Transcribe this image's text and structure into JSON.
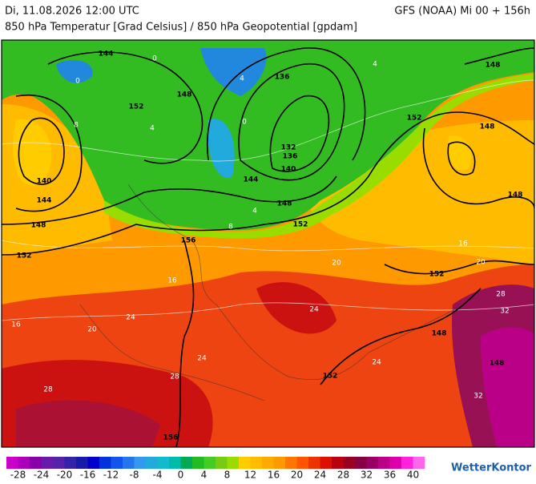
{
  "header": {
    "date_time": "Di, 11.08.2026 12:00 UTC",
    "model_run": "GFS (NOAA) Mi 00 + 156h",
    "subtitle": "850 hPa Temperatur [Grad Celsius] / 850 hPa Geopotential [gpdam]"
  },
  "map_labels": {
    "geopotential": [
      144,
      148,
      152,
      136,
      140,
      144,
      148,
      152,
      132,
      136,
      140,
      144,
      148,
      152,
      156,
      152,
      148,
      148,
      148,
      152,
      148,
      148,
      152,
      156
    ],
    "temperature": [
      0,
      0,
      4,
      4,
      4,
      0,
      4,
      8,
      16,
      16,
      20,
      20,
      24,
      24,
      24,
      28,
      28,
      24,
      32,
      32,
      20,
      28,
      8,
      16
    ]
  },
  "colorbar": {
    "labels": [
      -28,
      -24,
      -20,
      -16,
      -12,
      -8,
      -4,
      0,
      4,
      8,
      12,
      16,
      20,
      24,
      28,
      32,
      36,
      40
    ],
    "colors": [
      "#cc00cc",
      "#aa00bb",
      "#8800aa",
      "#6a1aa8",
      "#5522aa",
      "#3322aa",
      "#1a1aaa",
      "#0000cc",
      "#0033dd",
      "#1155ee",
      "#2277ee",
      "#3399ee",
      "#22aadd",
      "#11bbcc",
      "#00bbaa",
      "#00aa55",
      "#22bb22",
      "#44cc22",
      "#77cc11",
      "#99dd00",
      "#ffcc00",
      "#ffbb00",
      "#ffaa00",
      "#ff9900",
      "#ff7700",
      "#ff5500",
      "#ee3300",
      "#dd1100",
      "#bb0011",
      "#990022",
      "#880044",
      "#990066",
      "#bb0088",
      "#dd00aa",
      "#ff22dd",
      "#ff66ee"
    ]
  },
  "logo": "WetterKontor"
}
